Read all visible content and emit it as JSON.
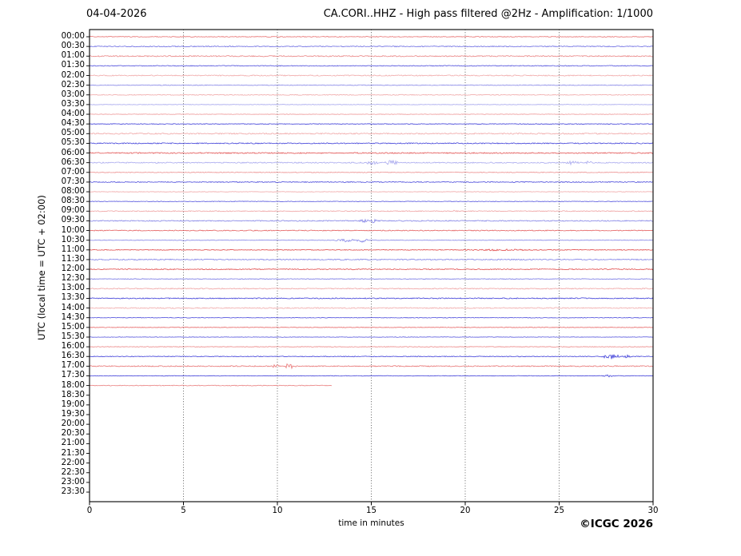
{
  "header": {
    "date": "04-04-2026",
    "title": "CA.CORI..HHZ - High pass filtered @2Hz - Amplification: 1/1000"
  },
  "footer": {
    "copyright": "©ICGC 2026"
  },
  "chart_data": {
    "type": "line",
    "subtype": "helicorder-seismogram",
    "title": "CA.CORI..HHZ - High pass filtered @2Hz - Amplification: 1/1000",
    "date": "04-04-2026",
    "xlabel": "time in minutes",
    "ylabel": "UTC (local time = UTC + 02:00)",
    "xlim": [
      0,
      30
    ],
    "x_ticks": [
      0,
      5,
      10,
      15,
      20,
      25,
      30
    ],
    "grid_minutes": [
      5,
      10,
      15,
      20,
      25
    ],
    "grid_on": true,
    "minutes_per_row": 30,
    "row_color_cycle": [
      "#e04545",
      "#3c3cd8"
    ],
    "grid_color": "#444444",
    "axis_color": "#000000",
    "row_labels": [
      "00:00",
      "00:30",
      "01:00",
      "01:30",
      "02:00",
      "02:30",
      "03:00",
      "03:30",
      "04:00",
      "04:30",
      "05:00",
      "05:30",
      "06:00",
      "06:30",
      "07:00",
      "07:30",
      "08:00",
      "08:30",
      "09:00",
      "09:30",
      "10:00",
      "10:30",
      "11:00",
      "11:30",
      "12:00",
      "12:30",
      "13:00",
      "13:30",
      "14:00",
      "14:30",
      "15:00",
      "15:30",
      "16:00",
      "16:30",
      "17:00",
      "17:30",
      "18:00",
      "18:30",
      "19:00",
      "19:30",
      "20:00",
      "20:30",
      "21:00",
      "21:30",
      "22:00",
      "22:30",
      "23:00",
      "23:30"
    ],
    "rows_without_data": [
      "18:30",
      "19:00",
      "19:30",
      "20:00",
      "20:30",
      "21:00",
      "21:30",
      "22:00",
      "22:30",
      "23:00",
      "23:30"
    ],
    "partial_rows": [
      {
        "row": "18:00",
        "start_minute": 0,
        "end_minute": 12.9
      }
    ],
    "events": [
      {
        "row": "06:30",
        "start": 14.6,
        "end": 15.5,
        "amp": 2.2
      },
      {
        "row": "06:30",
        "start": 15.65,
        "end": 16.55,
        "amp": 2.8
      },
      {
        "row": "06:30",
        "start": 25.3,
        "end": 26.15,
        "amp": 2.3
      },
      {
        "row": "06:30",
        "start": 26.3,
        "end": 26.85,
        "amp": 1.8
      },
      {
        "row": "09:00",
        "start": 19.3,
        "end": 19.6,
        "amp": 1.3
      },
      {
        "row": "09:30",
        "start": 14.3,
        "end": 14.9,
        "amp": 1.8
      },
      {
        "row": "09:30",
        "start": 14.9,
        "end": 15.4,
        "amp": 2.5
      },
      {
        "row": "10:30",
        "start": 4.95,
        "end": 5.15,
        "amp": 1.1
      },
      {
        "row": "10:30",
        "start": 13.0,
        "end": 13.6,
        "amp": 1.6
      },
      {
        "row": "10:30",
        "start": 13.45,
        "end": 14.1,
        "amp": 3.0
      },
      {
        "row": "10:30",
        "start": 14.15,
        "end": 14.9,
        "amp": 2.6
      },
      {
        "row": "11:00",
        "start": 19.3,
        "end": 24.2,
        "amp": 0.8
      },
      {
        "row": "16:30",
        "start": 27.2,
        "end": 28.3,
        "amp": 3.0
      },
      {
        "row": "16:30",
        "start": 28.35,
        "end": 28.95,
        "amp": 1.7
      },
      {
        "row": "17:00",
        "start": 9.6,
        "end": 10.2,
        "amp": 1.8
      },
      {
        "row": "17:00",
        "start": 10.3,
        "end": 11.05,
        "amp": 3.2
      },
      {
        "row": "17:30",
        "start": 27.2,
        "end": 27.9,
        "amp": 1.2
      }
    ]
  }
}
